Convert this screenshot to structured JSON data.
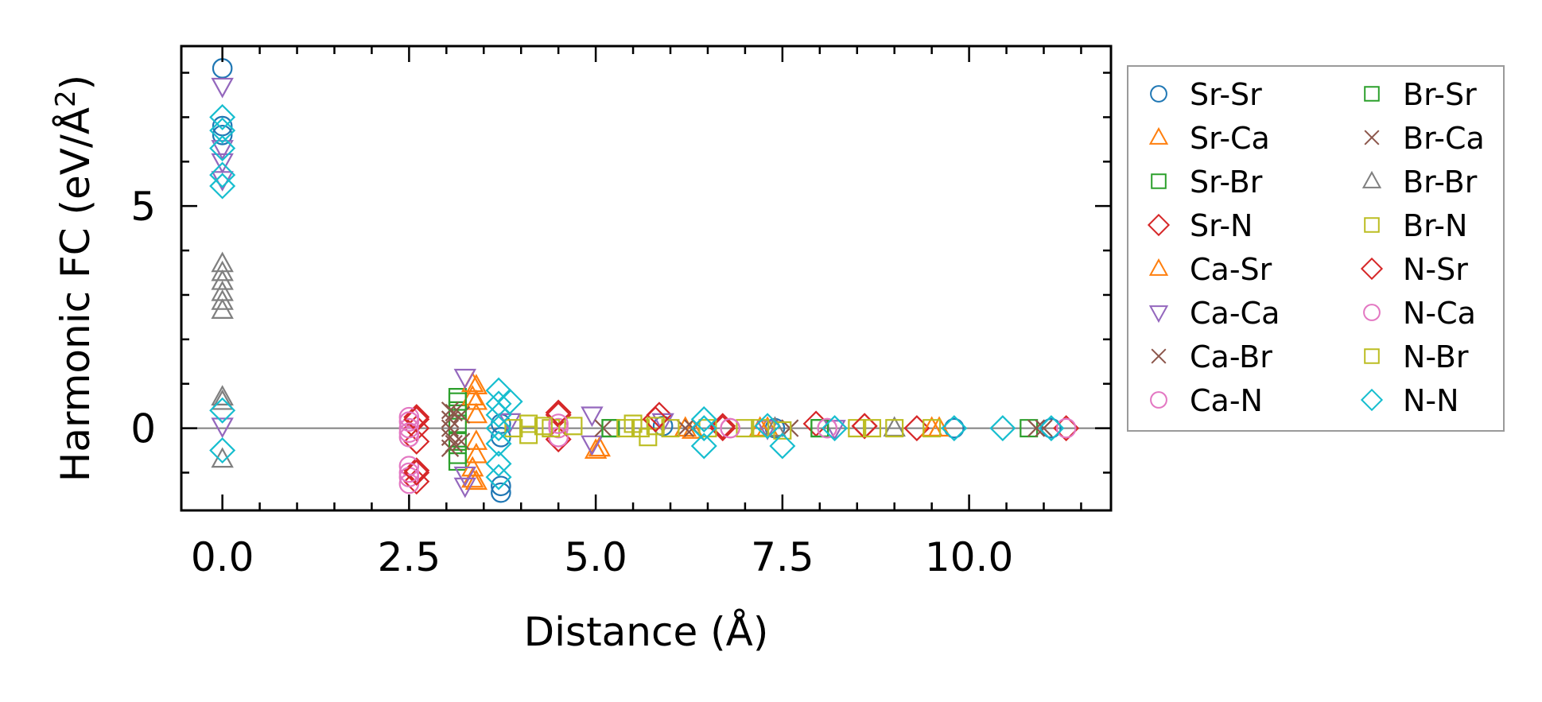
{
  "chart_data": {
    "type": "scatter",
    "title": "",
    "xlabel": "Distance (Å)",
    "ylabel_prefix": "Harmonic FC (eV/Å",
    "ylabel_sup": "2",
    "ylabel_suffix": ")",
    "xlim": [
      -0.55,
      11.9
    ],
    "ylim": [
      -1.85,
      8.6
    ],
    "xticks": [
      0.0,
      2.5,
      5.0,
      7.5,
      10.0
    ],
    "xtick_labels": [
      "0.0",
      "2.5",
      "5.0",
      "7.5",
      "10.0"
    ],
    "yticks": [
      0,
      5
    ],
    "ytick_labels": [
      "0",
      "5"
    ],
    "zero_line": 0,
    "legend_position": "outside-right",
    "series": [
      {
        "name": "Sr-Sr",
        "marker": "circle",
        "color": "#1f77b4",
        "points": [
          [
            0,
            8.1
          ],
          [
            0,
            6.8
          ],
          [
            0,
            6.6
          ],
          [
            3.73,
            -1.3
          ],
          [
            3.73,
            -1.45
          ],
          [
            3.73,
            0.1
          ],
          [
            3.73,
            -0.2
          ],
          [
            5.9,
            0.05
          ],
          [
            7.4,
            0.0
          ],
          [
            9.8,
            0.0
          ],
          [
            11.1,
            0.0
          ]
        ]
      },
      {
        "name": "Sr-Ca",
        "marker": "triangle-up",
        "color": "#ff7f0e",
        "points": [
          [
            3.4,
            0.95
          ],
          [
            3.4,
            0.6
          ],
          [
            3.4,
            0.3
          ],
          [
            3.4,
            -0.3
          ],
          [
            3.4,
            -0.6
          ],
          [
            3.4,
            -1.2
          ],
          [
            5.0,
            -0.5
          ],
          [
            6.3,
            -0.05
          ],
          [
            7.2,
            0.0
          ],
          [
            9.6,
            0.0
          ]
        ]
      },
      {
        "name": "Sr-Br",
        "marker": "square",
        "color": "#2ca02c",
        "points": [
          [
            3.15,
            0.7
          ],
          [
            3.15,
            0.4
          ],
          [
            3.15,
            0.1
          ],
          [
            3.15,
            -0.3
          ],
          [
            3.15,
            -0.75
          ],
          [
            5.2,
            0.0
          ],
          [
            8.0,
            0.0
          ],
          [
            10.8,
            0.0
          ]
        ]
      },
      {
        "name": "Sr-N",
        "marker": "diamond",
        "color": "#d62728",
        "points": [
          [
            2.6,
            0.25
          ],
          [
            2.6,
            0.0
          ],
          [
            2.6,
            -0.3
          ],
          [
            2.6,
            -0.95
          ],
          [
            2.6,
            -1.2
          ],
          [
            4.5,
            0.3
          ],
          [
            4.5,
            -0.25
          ],
          [
            5.85,
            0.3
          ],
          [
            6.7,
            0.0
          ],
          [
            7.95,
            0.1
          ],
          [
            8.6,
            0.05
          ],
          [
            9.3,
            0.0
          ],
          [
            11.3,
            0.0
          ]
        ]
      },
      {
        "name": "Ca-Sr",
        "marker": "triangle-up",
        "color": "#ff7f0e",
        "points": [
          [
            3.35,
            1.0
          ],
          [
            3.35,
            0.7
          ],
          [
            3.35,
            -0.9
          ],
          [
            3.35,
            -1.15
          ],
          [
            5.05,
            -0.45
          ],
          [
            6.2,
            0.0
          ],
          [
            7.3,
            0.0
          ],
          [
            9.5,
            0.0
          ]
        ]
      },
      {
        "name": "Ca-Ca",
        "marker": "triangle-down",
        "color": "#9467bd",
        "points": [
          [
            0,
            7.7
          ],
          [
            0,
            6.3
          ],
          [
            0,
            6.0
          ],
          [
            0,
            5.6
          ],
          [
            0,
            0.05
          ],
          [
            3.25,
            1.15
          ],
          [
            3.25,
            -1.3
          ],
          [
            3.25,
            -1.05
          ],
          [
            3.85,
            0.15
          ],
          [
            4.95,
            0.3
          ],
          [
            4.95,
            -0.35
          ],
          [
            5.9,
            0.15
          ],
          [
            7.3,
            0.0
          ],
          [
            8.2,
            0.0
          ]
        ]
      },
      {
        "name": "Ca-Br",
        "marker": "x",
        "color": "#8c564b",
        "points": [
          [
            3.05,
            0.4
          ],
          [
            3.05,
            0.2
          ],
          [
            3.05,
            0.0
          ],
          [
            3.05,
            -0.2
          ],
          [
            3.05,
            -0.45
          ],
          [
            3.2,
            0.3
          ],
          [
            3.2,
            -0.3
          ],
          [
            5.1,
            0.0
          ],
          [
            6.3,
            0.0
          ],
          [
            10.9,
            0.0
          ]
        ]
      },
      {
        "name": "Ca-N",
        "marker": "circle",
        "color": "#e377c2",
        "points": [
          [
            2.5,
            0.25
          ],
          [
            2.5,
            0.0
          ],
          [
            2.5,
            -0.2
          ],
          [
            2.5,
            -0.85
          ],
          [
            2.5,
            -1.1
          ],
          [
            2.5,
            -1.25
          ],
          [
            4.5,
            0.0
          ],
          [
            4.5,
            -0.2
          ],
          [
            6.8,
            0.0
          ],
          [
            8.1,
            0.0
          ],
          [
            11.3,
            0.0
          ]
        ]
      },
      {
        "name": "Br-Sr",
        "marker": "square",
        "color": "#2ca02c",
        "points": [
          [
            3.15,
            0.6
          ],
          [
            3.15,
            -0.6
          ],
          [
            5.2,
            0.0
          ],
          [
            8.0,
            0.0
          ]
        ]
      },
      {
        "name": "Br-Ca",
        "marker": "x",
        "color": "#8c564b",
        "points": [
          [
            3.1,
            0.35
          ],
          [
            3.1,
            -0.35
          ],
          [
            6.2,
            0.0
          ],
          [
            7.6,
            0.0
          ],
          [
            11.0,
            0.0
          ]
        ]
      },
      {
        "name": "Br-Br",
        "marker": "triangle-up",
        "color": "#7f7f7f",
        "points": [
          [
            0,
            3.7
          ],
          [
            0,
            3.5
          ],
          [
            0,
            3.3
          ],
          [
            0,
            3.05
          ],
          [
            0,
            2.85
          ],
          [
            0,
            2.65
          ],
          [
            0,
            0.7
          ],
          [
            0,
            0.6
          ],
          [
            0,
            -0.7
          ],
          [
            7.4,
            0.0
          ],
          [
            9.0,
            0.0
          ]
        ]
      },
      {
        "name": "Br-N",
        "marker": "square",
        "color": "#bcbd22",
        "points": [
          [
            4.1,
            0.1
          ],
          [
            4.1,
            -0.15
          ],
          [
            4.4,
            0.0
          ],
          [
            4.7,
            0.05
          ],
          [
            5.6,
            0.0
          ],
          [
            5.7,
            -0.2
          ],
          [
            5.5,
            0.1
          ],
          [
            6.0,
            0.0
          ],
          [
            7.0,
            0.0
          ],
          [
            7.5,
            -0.05
          ],
          [
            8.5,
            0.0
          ],
          [
            9.0,
            0.0
          ],
          [
            9.5,
            0.0
          ]
        ]
      },
      {
        "name": "N-Sr",
        "marker": "diamond",
        "color": "#d62728",
        "points": [
          [
            2.6,
            0.2
          ],
          [
            2.6,
            -1.0
          ],
          [
            4.5,
            0.35
          ],
          [
            5.8,
            0.2
          ],
          [
            6.7,
            0.05
          ],
          [
            8.6,
            0.05
          ]
        ]
      },
      {
        "name": "N-Ca",
        "marker": "circle",
        "color": "#e377c2",
        "points": [
          [
            2.5,
            0.15
          ],
          [
            2.5,
            -0.1
          ],
          [
            2.5,
            -1.0
          ],
          [
            4.5,
            0.1
          ],
          [
            6.8,
            0.0
          ],
          [
            8.1,
            0.0
          ]
        ]
      },
      {
        "name": "N-Br",
        "marker": "square",
        "color": "#bcbd22",
        "points": [
          [
            3.9,
            0.0
          ],
          [
            4.3,
            0.05
          ],
          [
            5.4,
            0.0
          ],
          [
            5.8,
            0.05
          ],
          [
            6.5,
            0.0
          ],
          [
            7.2,
            0.0
          ],
          [
            8.7,
            0.0
          ]
        ]
      },
      {
        "name": "N-N",
        "marker": "diamond",
        "color": "#17becf",
        "points": [
          [
            0,
            7.0
          ],
          [
            0,
            6.7
          ],
          [
            0,
            6.3
          ],
          [
            0,
            5.7
          ],
          [
            0,
            5.45
          ],
          [
            0,
            0.4
          ],
          [
            0,
            -0.5
          ],
          [
            3.7,
            0.85
          ],
          [
            3.7,
            0.55
          ],
          [
            3.7,
            0.3
          ],
          [
            3.7,
            0.0
          ],
          [
            3.7,
            -0.35
          ],
          [
            3.7,
            -0.8
          ],
          [
            3.7,
            -1.1
          ],
          [
            3.85,
            0.6
          ],
          [
            6.45,
            0.2
          ],
          [
            6.45,
            0.0
          ],
          [
            6.45,
            -0.4
          ],
          [
            7.3,
            0.05
          ],
          [
            7.5,
            -0.4
          ],
          [
            8.2,
            0.0
          ],
          [
            9.8,
            0.0
          ],
          [
            10.45,
            0.0
          ],
          [
            11.1,
            0.0
          ]
        ]
      }
    ]
  }
}
